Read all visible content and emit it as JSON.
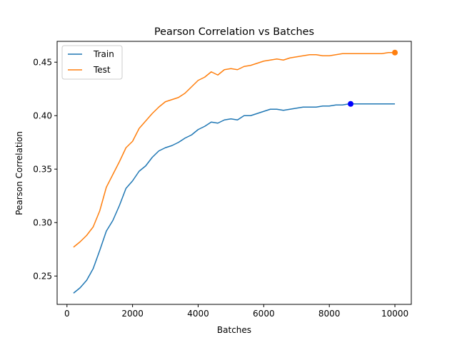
{
  "chart_data": {
    "type": "line",
    "title": "Pearson Correlation vs Batches",
    "xlabel": "Batches",
    "ylabel": "Pearson Correlation",
    "xlim": [
      -300,
      10500
    ],
    "ylim": [
      0.2235,
      0.4695
    ],
    "xticks": [
      0,
      2000,
      4000,
      6000,
      8000,
      10000
    ],
    "xtick_labels": [
      "0",
      "2000",
      "4000",
      "6000",
      "8000",
      "10000"
    ],
    "yticks": [
      0.25,
      0.3,
      0.35,
      0.4,
      0.45
    ],
    "ytick_labels": [
      "0.25",
      "0.30",
      "0.35",
      "0.40",
      "0.45"
    ],
    "grid": false,
    "legend_position": "top-left",
    "x": [
      200,
      400,
      600,
      800,
      1000,
      1200,
      1400,
      1600,
      1800,
      2000,
      2200,
      2400,
      2600,
      2800,
      3000,
      3200,
      3400,
      3600,
      3800,
      4000,
      4200,
      4400,
      4600,
      4800,
      5000,
      5200,
      5400,
      5600,
      5800,
      6000,
      6200,
      6400,
      6600,
      6800,
      7000,
      7200,
      7400,
      7600,
      7800,
      8000,
      8200,
      8400,
      8600,
      8800,
      9000,
      9200,
      9400,
      9600,
      9800,
      10000
    ],
    "series": [
      {
        "name": "Train",
        "color": "#1f77b4",
        "values": [
          0.234,
          0.239,
          0.246,
          0.257,
          0.274,
          0.292,
          0.302,
          0.316,
          0.332,
          0.339,
          0.348,
          0.353,
          0.361,
          0.367,
          0.37,
          0.372,
          0.375,
          0.379,
          0.382,
          0.387,
          0.39,
          0.394,
          0.393,
          0.396,
          0.397,
          0.396,
          0.4,
          0.4,
          0.402,
          0.404,
          0.406,
          0.406,
          0.405,
          0.406,
          0.407,
          0.408,
          0.408,
          0.408,
          0.409,
          0.409,
          0.41,
          0.41,
          0.411,
          0.411,
          0.411,
          0.411,
          0.411,
          0.411,
          0.411,
          0.411
        ],
        "marker": {
          "x": 8650,
          "y": 0.411,
          "color": "#0000ff"
        }
      },
      {
        "name": "Test",
        "color": "#ff7f0e",
        "values": [
          0.277,
          0.282,
          0.288,
          0.296,
          0.311,
          0.333,
          0.345,
          0.357,
          0.37,
          0.376,
          0.388,
          0.395,
          0.402,
          0.408,
          0.413,
          0.415,
          0.417,
          0.421,
          0.427,
          0.433,
          0.436,
          0.441,
          0.438,
          0.443,
          0.444,
          0.443,
          0.446,
          0.447,
          0.449,
          0.451,
          0.452,
          0.453,
          0.452,
          0.454,
          0.455,
          0.456,
          0.457,
          0.457,
          0.456,
          0.456,
          0.457,
          0.458,
          0.458,
          0.458,
          0.458,
          0.458,
          0.458,
          0.458,
          0.459,
          0.459
        ],
        "marker": {
          "x": 10000,
          "y": 0.459,
          "color": "#ff7f0e"
        }
      }
    ]
  }
}
